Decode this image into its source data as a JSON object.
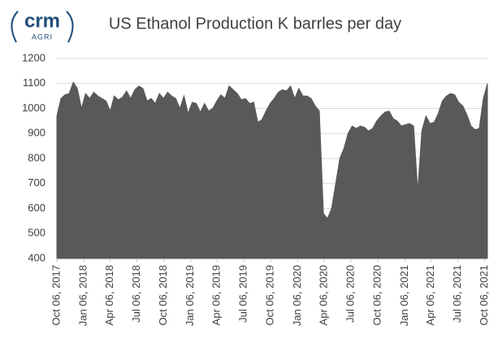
{
  "logo": {
    "text": "crm",
    "subtext": "AGRI"
  },
  "chart_data": {
    "type": "area",
    "title": "US Ethanol Production K barrles per day",
    "color": "#595959",
    "x": [
      "2017-10-06",
      "2017-10-20",
      "2017-11-03",
      "2017-11-17",
      "2017-12-01",
      "2017-12-15",
      "2017-12-29",
      "2018-01-12",
      "2018-01-26",
      "2018-02-09",
      "2018-02-23",
      "2018-03-09",
      "2018-03-23",
      "2018-04-06",
      "2018-04-20",
      "2018-05-04",
      "2018-05-18",
      "2018-06-01",
      "2018-06-15",
      "2018-06-29",
      "2018-07-13",
      "2018-07-27",
      "2018-08-10",
      "2018-08-24",
      "2018-09-07",
      "2018-09-21",
      "2018-10-05",
      "2018-10-19",
      "2018-11-02",
      "2018-11-16",
      "2018-11-30",
      "2018-12-14",
      "2018-12-28",
      "2019-01-11",
      "2019-01-25",
      "2019-02-08",
      "2019-02-22",
      "2019-03-08",
      "2019-03-22",
      "2019-04-05",
      "2019-04-19",
      "2019-05-03",
      "2019-05-17",
      "2019-05-31",
      "2019-06-14",
      "2019-06-28",
      "2019-07-12",
      "2019-07-26",
      "2019-08-09",
      "2019-08-23",
      "2019-09-06",
      "2019-09-20",
      "2019-10-04",
      "2019-10-18",
      "2019-11-01",
      "2019-11-15",
      "2019-11-29",
      "2019-12-13",
      "2019-12-27",
      "2020-01-10",
      "2020-01-24",
      "2020-02-07",
      "2020-02-21",
      "2020-03-06",
      "2020-03-20",
      "2020-04-03",
      "2020-04-17",
      "2020-05-01",
      "2020-05-15",
      "2020-05-29",
      "2020-06-12",
      "2020-06-26",
      "2020-07-10",
      "2020-07-24",
      "2020-08-07",
      "2020-08-21",
      "2020-09-04",
      "2020-09-18",
      "2020-10-02",
      "2020-10-16",
      "2020-10-30",
      "2020-11-13",
      "2020-11-27",
      "2020-12-11",
      "2020-12-25",
      "2021-01-08",
      "2021-01-22",
      "2021-02-05",
      "2021-02-19",
      "2021-03-05",
      "2021-03-19",
      "2021-04-02",
      "2021-04-16",
      "2021-04-30",
      "2021-05-14",
      "2021-05-28",
      "2021-06-11",
      "2021-06-25",
      "2021-07-09",
      "2021-07-23",
      "2021-08-06",
      "2021-08-20",
      "2021-09-03",
      "2021-09-17",
      "2021-10-01",
      "2021-10-15"
    ],
    "values": [
      970,
      1040,
      1055,
      1060,
      1105,
      1080,
      1000,
      1060,
      1040,
      1065,
      1050,
      1040,
      1030,
      990,
      1050,
      1035,
      1045,
      1070,
      1040,
      1075,
      1090,
      1080,
      1030,
      1040,
      1020,
      1060,
      1040,
      1065,
      1050,
      1040,
      1000,
      1050,
      980,
      1025,
      1020,
      985,
      1020,
      990,
      1000,
      1030,
      1055,
      1040,
      1090,
      1075,
      1060,
      1035,
      1040,
      1020,
      1025,
      945,
      955,
      990,
      1020,
      1040,
      1065,
      1075,
      1070,
      1090,
      1040,
      1080,
      1050,
      1050,
      1040,
      1010,
      990,
      580,
      560,
      600,
      700,
      800,
      840,
      900,
      930,
      920,
      930,
      925,
      910,
      920,
      950,
      970,
      985,
      990,
      960,
      950,
      930,
      935,
      940,
      930,
      670,
      910,
      970,
      940,
      945,
      980,
      1030,
      1050,
      1060,
      1055,
      1025,
      1010,
      975,
      930,
      915,
      920,
      1040,
      1100
    ],
    "xlim": [
      "2017-10-06",
      "2021-10-15"
    ],
    "xticks": [
      {
        "value": "2017-10-06",
        "label": "Oct 06, 2017"
      },
      {
        "value": "2018-01-06",
        "label": "Jan 06, 2018"
      },
      {
        "value": "2018-04-06",
        "label": "Apr 06, 2018"
      },
      {
        "value": "2018-07-06",
        "label": "Jul 06, 2018"
      },
      {
        "value": "2018-10-06",
        "label": "Oct 06, 2018"
      },
      {
        "value": "2019-01-06",
        "label": "Jan 06, 2019"
      },
      {
        "value": "2019-04-06",
        "label": "Apr 06, 2019"
      },
      {
        "value": "2019-07-06",
        "label": "Jul 06, 2019"
      },
      {
        "value": "2019-10-06",
        "label": "Oct 06, 2019"
      },
      {
        "value": "2020-01-06",
        "label": "Jan 06, 2020"
      },
      {
        "value": "2020-04-06",
        "label": "Apr 06, 2020"
      },
      {
        "value": "2020-07-06",
        "label": "Jul 06, 2020"
      },
      {
        "value": "2020-10-06",
        "label": "Oct 06, 2020"
      },
      {
        "value": "2021-01-06",
        "label": "Jan 06, 2021"
      },
      {
        "value": "2021-04-06",
        "label": "Apr 06, 2021"
      },
      {
        "value": "2021-07-06",
        "label": "Jul 06, 2021"
      },
      {
        "value": "2021-10-06",
        "label": "Oct 06, 2021"
      }
    ],
    "ylim": [
      400,
      1200
    ],
    "yticks": [
      400,
      500,
      600,
      700,
      800,
      900,
      1000,
      1100,
      1200
    ],
    "grid": true
  }
}
